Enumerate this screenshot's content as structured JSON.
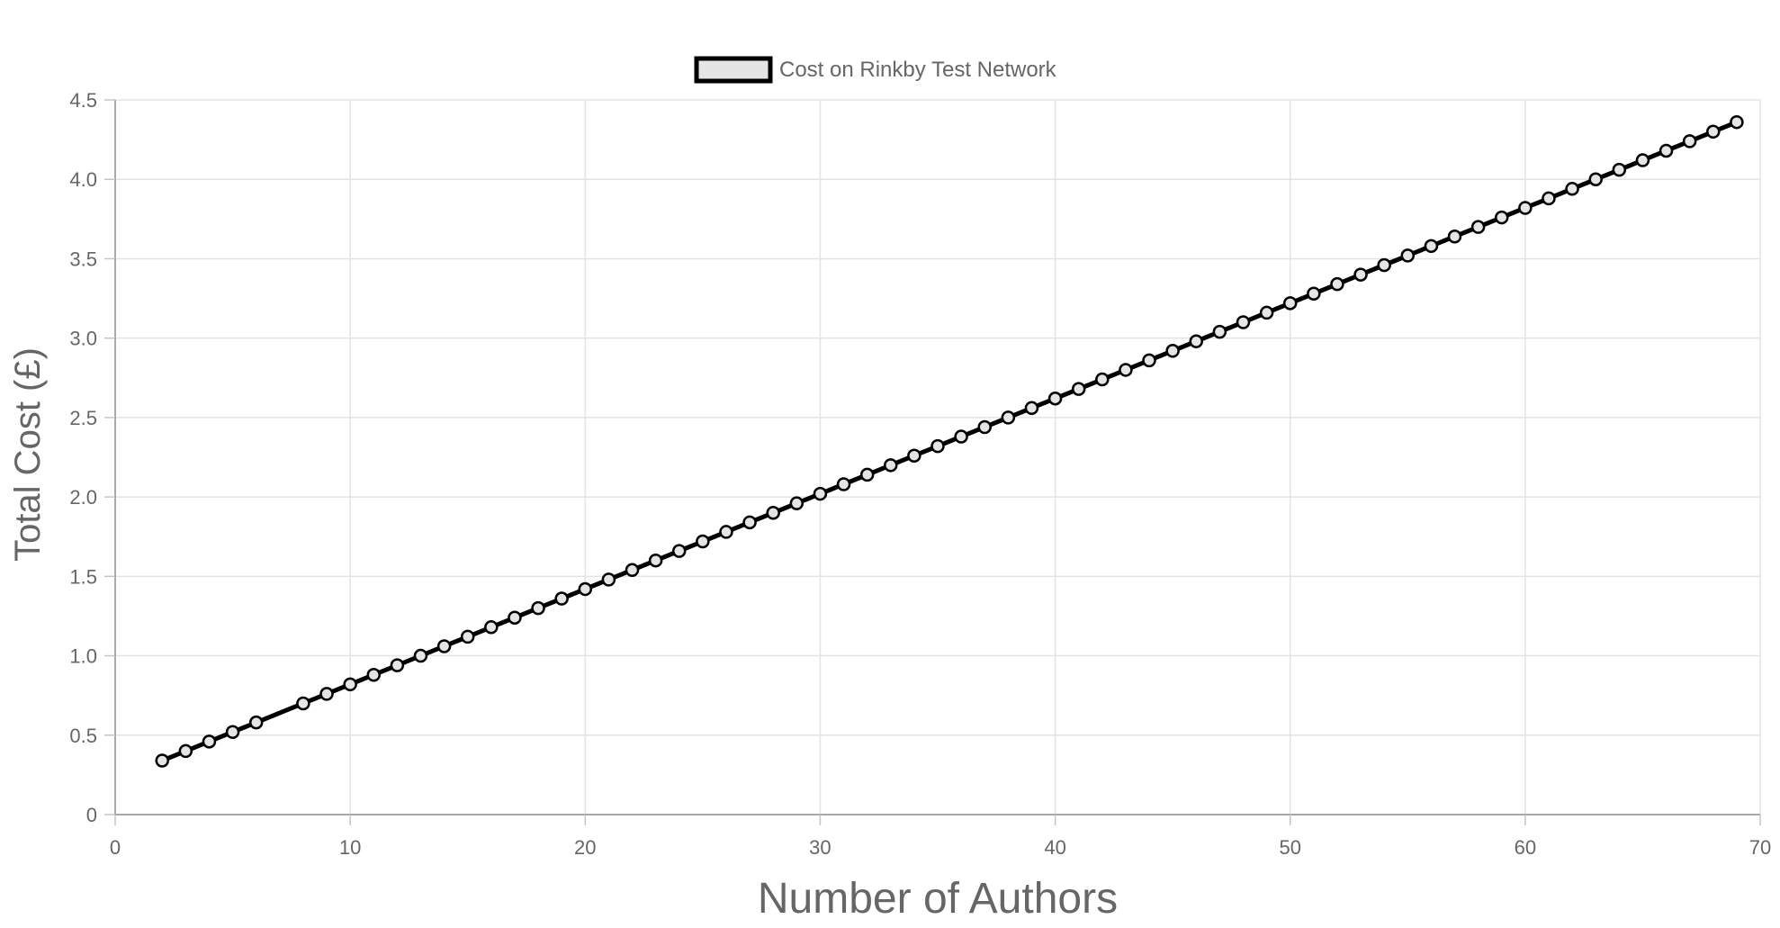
{
  "chart_data": {
    "type": "line",
    "xlabel": "Number of Authors",
    "ylabel": "Total Cost (£)",
    "xlim": [
      0,
      70
    ],
    "ylim": [
      0,
      4.5
    ],
    "x_ticks": [
      "0",
      "10",
      "20",
      "30",
      "40",
      "50",
      "60",
      "70"
    ],
    "y_ticks": [
      "0",
      "0.5",
      "1.0",
      "1.5",
      "2.0",
      "2.5",
      "3.0",
      "3.5",
      "4.0",
      "4.5"
    ],
    "grid": true,
    "legend_position": "top",
    "series": [
      {
        "name": "Cost on Rinkby Test Network",
        "line_color": "#000000",
        "legend_fill": "#e5e5e5",
        "x": [
          2,
          3,
          4,
          5,
          6,
          8,
          9,
          10,
          11,
          12,
          13,
          14,
          15,
          16,
          17,
          18,
          19,
          20,
          21,
          22,
          23,
          24,
          25,
          26,
          27,
          28,
          29,
          30,
          31,
          32,
          33,
          34,
          35,
          36,
          37,
          38,
          39,
          40,
          41,
          42,
          43,
          44,
          45,
          46,
          47,
          48,
          49,
          50,
          51,
          52,
          53,
          54,
          55,
          56,
          57,
          58,
          59,
          60,
          61,
          62,
          63,
          64,
          65,
          66,
          67,
          68,
          69
        ],
        "y": [
          0.34,
          0.4,
          0.46,
          0.52,
          0.58,
          0.7,
          0.76,
          0.82,
          0.88,
          0.94,
          1.0,
          1.06,
          1.12,
          1.18,
          1.24,
          1.3,
          1.36,
          1.42,
          1.48,
          1.54,
          1.6,
          1.66,
          1.72,
          1.78,
          1.84,
          1.9,
          1.96,
          2.02,
          2.08,
          2.14,
          2.2,
          2.26,
          2.32,
          2.38,
          2.44,
          2.5,
          2.56,
          2.62,
          2.68,
          2.74,
          2.8,
          2.86,
          2.92,
          2.98,
          3.04,
          3.1,
          3.16,
          3.22,
          3.28,
          3.34,
          3.4,
          3.46,
          3.52,
          3.58,
          3.64,
          3.7,
          3.76,
          3.82,
          3.88,
          3.94,
          4.0,
          4.06,
          4.12,
          4.18,
          4.24,
          4.3,
          4.36
        ]
      }
    ]
  }
}
